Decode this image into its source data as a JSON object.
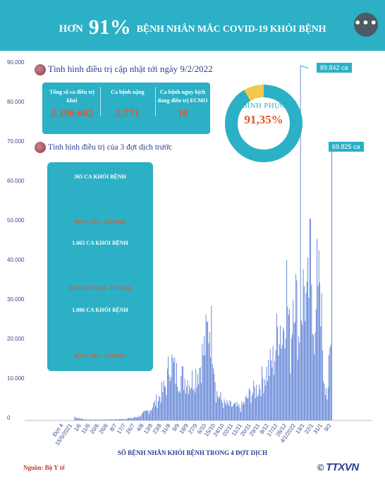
{
  "header": {
    "title_prefix": "HƠN",
    "title_pct": "91%",
    "title_suffix": "BỆNH NHÂN MẮC COVID-19 KHỎI BỆNH",
    "more_icon": "ellipsis-icon"
  },
  "update": {
    "title": "Tình hình điều trị cập nhật tới ngày 9/2/2022",
    "stats": [
      {
        "label": "Tổng số ca điều trị khỏi",
        "value": "2.196.602"
      },
      {
        "label": "Ca bệnh nặng",
        "value": "2.771"
      },
      {
        "label": "Ca bệnh nguy kịch đang điều trị ECMO",
        "value": "18"
      }
    ]
  },
  "recovery": {
    "label": "BÌNH PHỤC",
    "value": "91,35%",
    "fraction": 0.9135,
    "colors": {
      "recovered": "#2bb0c6",
      "rest": "#f2c94c"
    }
  },
  "previous": {
    "title": "Tình hình điều trị của 3 đợt dịch trước",
    "waves": [
      {
        "title": "365 CA KHỎI BỆNH",
        "caption": "ĐỢT 1 (23/1 - 24/7/2020)"
      },
      {
        "title": "1.065 CA KHỎI BỆNH",
        "caption": "ĐỢT 2 (25/7/2020 - 27/1/2021)"
      },
      {
        "title": "1.086 CA KHỎI BỆNH",
        "caption": "ĐỢT 3 (28/1 - 26/4/2021)"
      }
    ]
  },
  "chart_data": {
    "type": "bar",
    "title": "",
    "xlabel": "SỐ BỆNH NHÂN KHỎI BỆNH TRONG 4 ĐỢT DỊCH",
    "ylabel": "",
    "ylim": [
      0,
      90000
    ],
    "y_ticks": [
      "0",
      "10.000",
      "20.000",
      "30.000",
      "40.000",
      "50.000",
      "60.000",
      "70.000",
      "80.000",
      "90.000"
    ],
    "x_tick_labels": [
      "Đợt 4",
      "15/5/2021",
      "1/6",
      "11/6",
      "20/6",
      "26/6",
      "8/7",
      "17/7",
      "26/7",
      "4/8",
      "13/8",
      "23/8",
      "31/8",
      "9/9",
      "18/9",
      "27/9",
      "6/10",
      "15/10",
      "24/10",
      "02/11",
      "11/11",
      "20/11",
      "29/11",
      "8/12",
      "17/12",
      "26/12",
      "4/1/2022",
      "13/1",
      "22/1",
      "31/1",
      "9/2"
    ],
    "x_start_date": "2021-04-27",
    "x_end_date": "2022-02-09",
    "series": [
      {
        "name": "Số ca khỏi bệnh",
        "color": "#5b7fd6",
        "points": [
          {
            "x": "2021-05-05",
            "y": 1000
          },
          {
            "x": "2021-05-15",
            "y": 300
          },
          {
            "x": "2021-06-01",
            "y": 200
          },
          {
            "x": "2021-06-11",
            "y": 300
          },
          {
            "x": "2021-06-20",
            "y": 300
          },
          {
            "x": "2021-06-26",
            "y": 400
          },
          {
            "x": "2021-07-08",
            "y": 700
          },
          {
            "x": "2021-07-17",
            "y": 1500
          },
          {
            "x": "2021-07-26",
            "y": 3000
          },
          {
            "x": "2021-08-04",
            "y": 6000
          },
          {
            "x": "2021-08-13",
            "y": 10000
          },
          {
            "x": "2021-08-17",
            "y": 17500
          },
          {
            "x": "2021-08-23",
            "y": 13000
          },
          {
            "x": "2021-08-31",
            "y": 12000
          },
          {
            "x": "2021-09-09",
            "y": 11000
          },
          {
            "x": "2021-09-18",
            "y": 15000
          },
          {
            "x": "2021-09-24",
            "y": 21000
          },
          {
            "x": "2021-09-29",
            "y": 27800
          },
          {
            "x": "2021-10-03",
            "y": 22000
          },
          {
            "x": "2021-10-06",
            "y": 8000
          },
          {
            "x": "2021-10-15",
            "y": 4500
          },
          {
            "x": "2021-10-24",
            "y": 4000
          },
          {
            "x": "2021-11-02",
            "y": 3500
          },
          {
            "x": "2021-11-11",
            "y": 7000
          },
          {
            "x": "2021-11-20",
            "y": 9000
          },
          {
            "x": "2021-11-29",
            "y": 13000
          },
          {
            "x": "2021-12-08",
            "y": 17000
          },
          {
            "x": "2021-12-14",
            "y": 29000
          },
          {
            "x": "2021-12-17",
            "y": 23000
          },
          {
            "x": "2021-12-22",
            "y": 38000
          },
          {
            "x": "2021-12-26",
            "y": 19000
          },
          {
            "x": "2021-12-30",
            "y": 43000
          },
          {
            "x": "2022-01-04",
            "y": 23000
          },
          {
            "x": "2022-01-06",
            "y": 89842
          },
          {
            "x": "2022-01-10",
            "y": 38000
          },
          {
            "x": "2022-01-13",
            "y": 30000
          },
          {
            "x": "2022-01-17",
            "y": 46000
          },
          {
            "x": "2022-01-22",
            "y": 21000
          },
          {
            "x": "2022-01-26",
            "y": 54000
          },
          {
            "x": "2022-01-31",
            "y": 9000
          },
          {
            "x": "2022-02-05",
            "y": 8000
          },
          {
            "x": "2022-02-09",
            "y": 69825
          }
        ]
      }
    ],
    "annotations": [
      {
        "text": "89.842 ca",
        "x": "2022-01-06",
        "y": 89842
      },
      {
        "text": "69.825 ca",
        "x": "2022-02-09",
        "y": 69825
      }
    ],
    "grid": false
  },
  "footer": {
    "source": "Nguồn: Bộ Y tế",
    "logo": "TTXVN",
    "logo_mark": "©"
  }
}
